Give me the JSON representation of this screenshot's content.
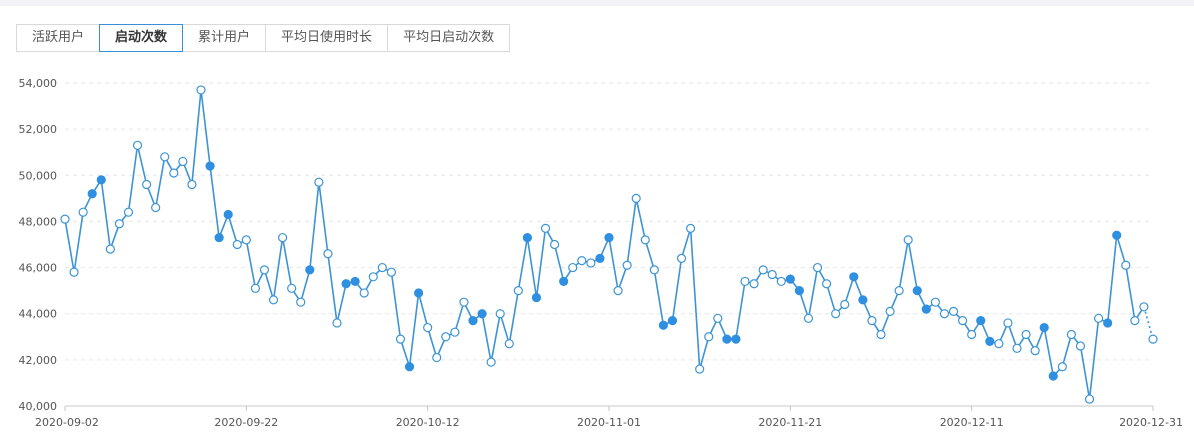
{
  "tabs": [
    {
      "label": "活跃用户",
      "active": false
    },
    {
      "label": "启动次数",
      "active": true
    },
    {
      "label": "累计用户",
      "active": false
    },
    {
      "label": "平均日使用时长",
      "active": false
    },
    {
      "label": "平均日启动次数",
      "active": false
    }
  ],
  "colors": {
    "line": "#3d94d4",
    "marker_filled": "#2f8fe0",
    "marker_hollow": "#ffffff",
    "axis": "#c8c8c8",
    "grid": "#e6e6e6"
  },
  "chart_data": {
    "type": "line",
    "title": "",
    "xlabel": "",
    "ylabel": "",
    "ylim": [
      40000,
      54000
    ],
    "yticks": [
      "40,000",
      "42,000",
      "44,000",
      "46,000",
      "48,000",
      "50,000",
      "52,000",
      "54,000"
    ],
    "xlim": [
      "2020-09-02",
      "2020-12-31"
    ],
    "xticks": [
      "2020-09-02",
      "2020-09-22",
      "2020-10-12",
      "2020-11-01",
      "2020-11-21",
      "2020-12-11",
      "2020-12-31"
    ],
    "grid": true,
    "last_segment_dotted": true,
    "series": [
      {
        "start_date": "2020-09-02",
        "values": [
          48100,
          45800,
          48400,
          49200,
          49800,
          46800,
          47900,
          48400,
          51300,
          49600,
          48600,
          50800,
          50100,
          50600,
          49600,
          53700,
          50400,
          47300,
          48300,
          47000,
          47200,
          45100,
          45900,
          44600,
          47300,
          45100,
          44500,
          45900,
          49700,
          46600,
          43600,
          45300,
          45400,
          44900,
          45600,
          46000,
          45800,
          42900,
          41700,
          44900,
          43400,
          42100,
          43000,
          43200,
          44500,
          43700,
          44000,
          41900,
          44000,
          42700,
          45000,
          47300,
          44700,
          47700,
          47000,
          45400,
          46000,
          46300,
          46200,
          46400,
          47300,
          45000,
          46100,
          49000,
          47200,
          45900,
          43500,
          43700,
          46400,
          47700,
          41600,
          43000,
          43800,
          42900,
          42900,
          45400,
          45300,
          45900,
          45700,
          45400,
          45500,
          45000,
          43800,
          46000,
          45300,
          44000,
          44400,
          45600,
          44600,
          43700,
          43100,
          44100,
          45000,
          47200,
          45000,
          44200,
          44500,
          44000,
          44100,
          43700,
          43100,
          43700,
          42800,
          42700,
          43600,
          42500,
          43100,
          42400,
          43400,
          41300,
          41700,
          43100,
          42600,
          40300,
          43800,
          43600,
          47400,
          46100,
          43700,
          44300,
          42900
        ],
        "filled_indices": [
          3,
          4,
          16,
          17,
          18,
          27,
          31,
          32,
          38,
          39,
          45,
          46,
          51,
          52,
          55,
          59,
          60,
          66,
          67,
          73,
          74,
          80,
          81,
          87,
          88,
          94,
          95,
          101,
          102,
          108,
          109,
          115,
          116
        ]
      }
    ]
  }
}
